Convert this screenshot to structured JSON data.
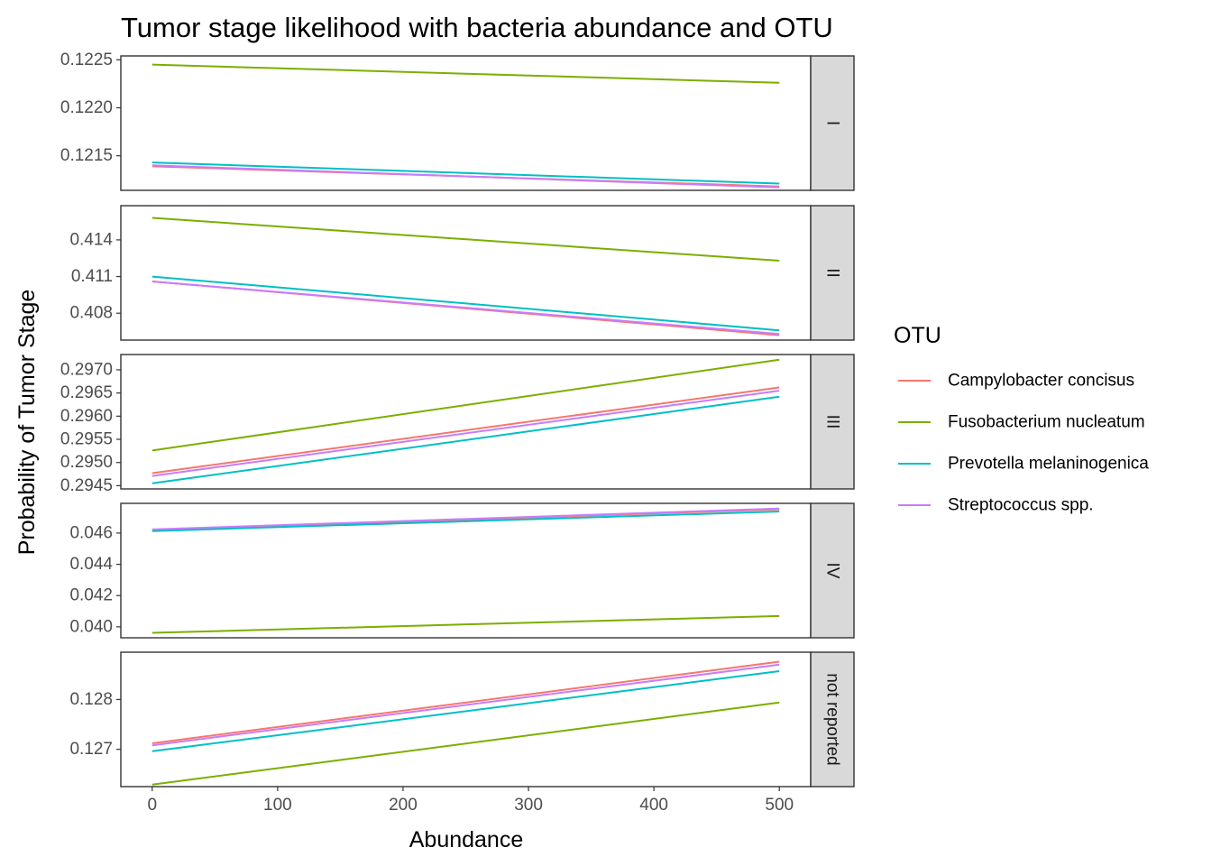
{
  "chart_data": {
    "type": "line",
    "title": "Tumor stage likelihood with bacteria abundance and OTU",
    "xlabel": "Abundance",
    "ylabel": "Probability of Tumor Stage",
    "xlim": [
      -25,
      525
    ],
    "x_ticks": [
      0,
      100,
      200,
      300,
      400,
      500
    ],
    "x_tick_labels": [
      "0",
      "100",
      "200",
      "300",
      "400",
      "500"
    ],
    "grid": false,
    "legend": {
      "title": "OTU",
      "placement": "right",
      "entries": [
        {
          "name": "Campylobacter concisus",
          "color": "#F8766D"
        },
        {
          "name": "Fusobacterium nucleatum",
          "color": "#7CAE00"
        },
        {
          "name": "Prevotella melaninogenica",
          "color": "#00BFC4"
        },
        {
          "name": "Streptococcus spp.",
          "color": "#C77CFF"
        }
      ]
    },
    "x": [
      0,
      500
    ],
    "panels": [
      {
        "strip": "I",
        "ylim": [
          0.12114,
          0.12254
        ],
        "y_ticks": [
          0.1215,
          0.122,
          0.1225
        ],
        "y_tick_labels": [
          "0.1215",
          "0.1220",
          "0.1225"
        ],
        "series": [
          {
            "name": "Campylobacter concisus",
            "values": [
              0.12139,
              0.12118
            ]
          },
          {
            "name": "Fusobacterium nucleatum",
            "values": [
              0.12245,
              0.12226
            ]
          },
          {
            "name": "Prevotella melaninogenica",
            "values": [
              0.12143,
              0.12121
            ]
          },
          {
            "name": "Streptococcus spp.",
            "values": [
              0.1214,
              0.12117
            ]
          }
        ]
      },
      {
        "strip": "II",
        "ylim": [
          0.4058,
          0.4168
        ],
        "y_ticks": [
          0.408,
          0.411,
          0.414
        ],
        "y_tick_labels": [
          "0.408",
          "0.411",
          "0.414"
        ],
        "series": [
          {
            "name": "Campylobacter concisus",
            "values": [
              0.4106,
              0.4062
            ]
          },
          {
            "name": "Fusobacterium nucleatum",
            "values": [
              0.4158,
              0.4123
            ]
          },
          {
            "name": "Prevotella melaninogenica",
            "values": [
              0.411,
              0.4066
            ]
          },
          {
            "name": "Streptococcus spp.",
            "values": [
              0.4106,
              0.4063
            ]
          }
        ]
      },
      {
        "strip": "III",
        "ylim": [
          0.29443,
          0.29733
        ],
        "y_ticks": [
          0.2945,
          0.295,
          0.2955,
          0.296,
          0.2965,
          0.297
        ],
        "y_tick_labels": [
          "0.2945",
          "0.2950",
          "0.2955",
          "0.2960",
          "0.2965",
          "0.2970"
        ],
        "series": [
          {
            "name": "Campylobacter concisus",
            "values": [
              0.29477,
              0.29662
            ]
          },
          {
            "name": "Fusobacterium nucleatum",
            "values": [
              0.29526,
              0.29722
            ]
          },
          {
            "name": "Prevotella melaninogenica",
            "values": [
              0.29455,
              0.29642
            ]
          },
          {
            "name": "Streptococcus spp.",
            "values": [
              0.29471,
              0.29655
            ]
          }
        ]
      },
      {
        "strip": "IV",
        "ylim": [
          0.0393,
          0.0479
        ],
        "y_ticks": [
          0.04,
          0.042,
          0.044,
          0.046
        ],
        "y_tick_labels": [
          "0.040",
          "0.042",
          "0.044",
          "0.046"
        ],
        "series": [
          {
            "name": "Campylobacter concisus",
            "values": [
              0.0462,
              0.04752
            ]
          },
          {
            "name": "Fusobacterium nucleatum",
            "values": [
              0.03962,
              0.04069
            ]
          },
          {
            "name": "Prevotella melaninogenica",
            "values": [
              0.04613,
              0.04738
            ]
          },
          {
            "name": "Streptococcus spp.",
            "values": [
              0.04623,
              0.04757
            ]
          }
        ]
      },
      {
        "strip": "not reported",
        "ylim": [
          0.12625,
          0.12895
        ],
        "y_ticks": [
          0.127,
          0.128
        ],
        "y_tick_labels": [
          "0.127",
          "0.128"
        ],
        "series": [
          {
            "name": "Campylobacter concisus",
            "values": [
              0.12712,
              0.12876
            ]
          },
          {
            "name": "Fusobacterium nucleatum",
            "values": [
              0.12629,
              0.12794
            ]
          },
          {
            "name": "Prevotella melaninogenica",
            "values": [
              0.12696,
              0.12857
            ]
          },
          {
            "name": "Streptococcus spp.",
            "values": [
              0.12708,
              0.1287
            ]
          }
        ]
      }
    ]
  }
}
